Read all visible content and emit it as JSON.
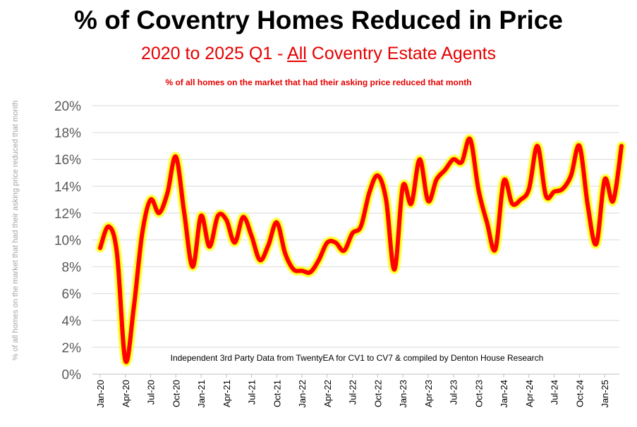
{
  "chart_data": {
    "type": "line",
    "title": "% of Coventry Homes Reduced in Price",
    "subtitle_pre": "2020 to 2025 Q1 - ",
    "subtitle_em": "All",
    "subtitle_post": " Coventry Estate Agents",
    "subsubtitle": "% of all homes on the market that had their asking price reduced that month",
    "ylabel": "% of all homes on the market that had their asking price reduced that month",
    "annotation": "Independent 3rd Party Data from TwentyEA for CV1 to CV7 & compiled by Denton House Research",
    "ylim": [
      0,
      20
    ],
    "yticks": [
      "0%",
      "2%",
      "4%",
      "6%",
      "8%",
      "10%",
      "12%",
      "14%",
      "16%",
      "18%",
      "20%"
    ],
    "xtick_labels": [
      "Jan-20",
      "Apr-20",
      "Jul-20",
      "Oct-20",
      "Jan-21",
      "Apr-21",
      "Jul-21",
      "Oct-21",
      "Jan-22",
      "Apr-22",
      "Jul-22",
      "Oct-22",
      "Jan-23",
      "Apr-23",
      "Jul-23",
      "Oct-23",
      "Jan-24",
      "Apr-24",
      "Jul-24",
      "Oct-24",
      "Jan-25"
    ],
    "grid": true,
    "line_color": "#ff0000",
    "glow_color": "#ffff00",
    "series": [
      {
        "values": [
          9.4,
          11.0,
          9.0,
          1.0,
          5.0,
          10.5,
          13.0,
          12.0,
          13.5,
          16.2,
          12.0,
          8.0,
          11.8,
          9.5,
          11.8,
          11.5,
          9.8,
          11.7,
          10.3,
          8.5,
          9.6,
          11.3,
          9.0,
          7.8,
          7.7,
          7.6,
          8.5,
          9.8,
          9.8,
          9.2,
          10.5,
          11.0,
          13.5,
          14.8,
          13.0,
          7.8,
          14.0,
          12.7,
          16.0,
          12.9,
          14.5,
          15.2,
          16.0,
          15.8,
          17.5,
          13.7,
          11.3,
          9.3,
          14.4,
          12.7,
          13.0,
          13.8,
          17.0,
          13.3,
          13.6,
          13.8,
          14.8,
          17.0,
          12.5,
          9.7,
          14.5,
          12.9,
          17.0
        ]
      }
    ]
  }
}
